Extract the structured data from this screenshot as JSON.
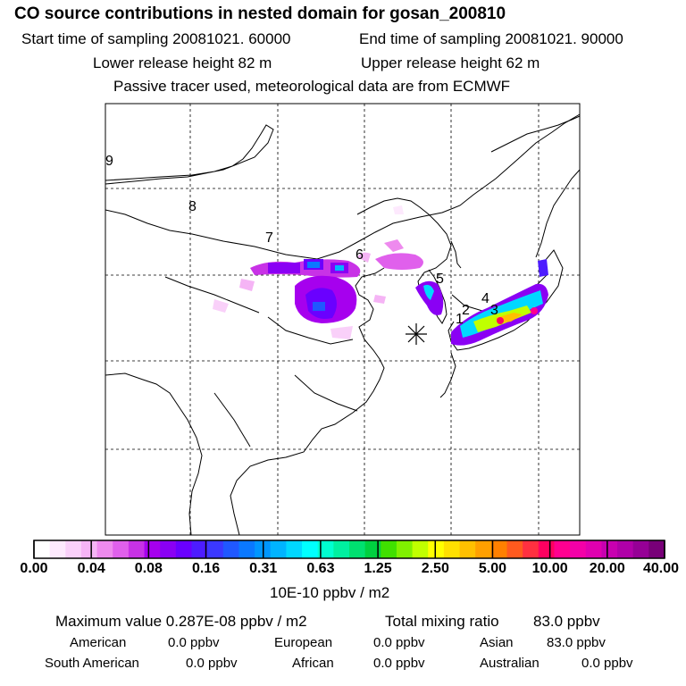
{
  "header": {
    "title": "CO  source contributions in nested domain for gosan_200810",
    "start_time": "Start time of sampling 20081021. 60000",
    "end_time": "End time of sampling 20081021. 90000",
    "lower_height": "Lower release height   82 m",
    "upper_height": "Upper release height   62 m",
    "tracer_note": "Passive tracer used, meteorological data are from ECMWF"
  },
  "map": {
    "region_labels": [
      "1",
      "2",
      "3",
      "4",
      "5",
      "6",
      "7",
      "8",
      "9"
    ],
    "receptor_marker": "asterisk"
  },
  "colorbar": {
    "ticks": [
      "0.00",
      "0.04",
      "0.08",
      "0.16",
      "0.31",
      "0.63",
      "1.25",
      "2.50",
      "5.00",
      "10.00",
      "20.00",
      "40.00"
    ],
    "colors": [
      "#ffffff",
      "#fde9fd",
      "#f9d0f9",
      "#f5b4f5",
      "#ee8aee",
      "#e060ec",
      "#c832e6",
      "#a600ee",
      "#8a00f4",
      "#6a00ff",
      "#4d1cff",
      "#3b38ff",
      "#2058ff",
      "#0a78ff",
      "#0096ff",
      "#00b4ff",
      "#00d8ff",
      "#00ffff",
      "#00ffd0",
      "#00f0a0",
      "#00e070",
      "#00d040",
      "#40e000",
      "#80f000",
      "#c0ff00",
      "#ffff00",
      "#ffe000",
      "#ffc000",
      "#ffa000",
      "#ff8000",
      "#ff5a1e",
      "#ff3040",
      "#ff0060",
      "#ff0090",
      "#f400a8",
      "#e000b0",
      "#c800b0",
      "#b000a8",
      "#960096",
      "#780078"
    ],
    "unit": "10E-10 ppbv / m2"
  },
  "summary": {
    "max_label": "Maximum value  0.287E-08 ppbv / m2",
    "total_label": "Total mixing ratio",
    "total_value": "83.0 ppbv",
    "rows": [
      [
        {
          "label": "American",
          "value": "0.0 ppbv"
        },
        {
          "label": "European",
          "value": "0.0 ppbv"
        },
        {
          "label": "Asian",
          "value": "83.0 ppbv"
        }
      ],
      [
        {
          "label": "South American",
          "value": "0.0 ppbv"
        },
        {
          "label": "African",
          "value": "0.0 ppbv"
        },
        {
          "label": "Australian",
          "value": "0.0 ppbv"
        }
      ]
    ]
  }
}
